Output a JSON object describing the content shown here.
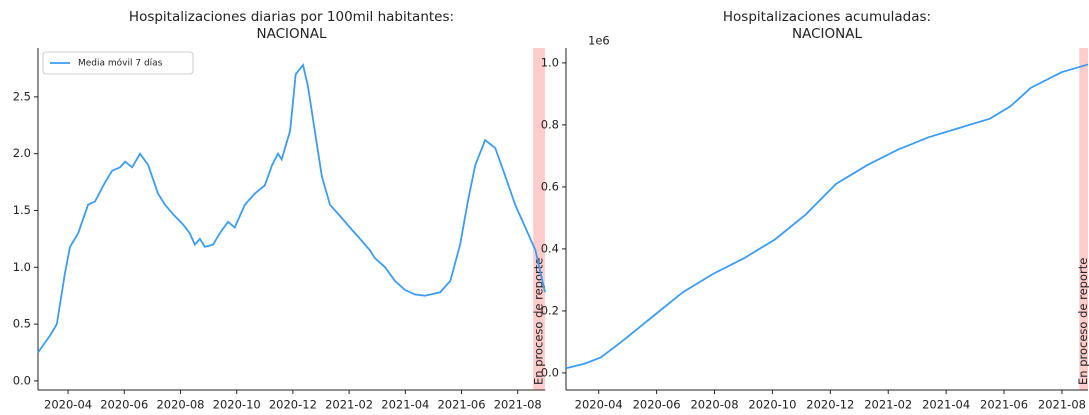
{
  "chart_data": [
    {
      "type": "line",
      "title": [
        "Hospitalizaciones diarias por 100mil habitantes:",
        "NACIONAL"
      ],
      "x": [
        1.93,
        2.36,
        2.6,
        2.89,
        3.07,
        3.36,
        3.71,
        3.96,
        4.32,
        4.57,
        4.85,
        5.03,
        5.28,
        5.56,
        5.85,
        6.2,
        6.45,
        6.8,
        7.08,
        7.33,
        7.51,
        7.69,
        7.87,
        8.16,
        8.4,
        8.69,
        8.93,
        9.29,
        9.65,
        10.0,
        10.26,
        10.47,
        10.6,
        10.9,
        11.1,
        11.36,
        11.53,
        11.78,
        12.03,
        12.32,
        12.68,
        13.03,
        13.39,
        13.74,
        13.92,
        14.28,
        14.63,
        14.99,
        15.35,
        15.7,
        16.24,
        16.6,
        16.95,
        17.24,
        17.49,
        17.84,
        18.2,
        18.56,
        18.91,
        19.27,
        19.63,
        19.97
      ],
      "series": [
        {
          "name": "Media móvil 7 días",
          "color": "#3d9cf0",
          "values": [
            0.25,
            0.4,
            0.5,
            0.95,
            1.18,
            1.3,
            1.55,
            1.58,
            1.75,
            1.85,
            1.88,
            1.93,
            1.88,
            2.0,
            1.9,
            1.65,
            1.55,
            1.45,
            1.38,
            1.3,
            1.2,
            1.25,
            1.18,
            1.2,
            1.3,
            1.4,
            1.35,
            1.55,
            1.65,
            1.72,
            1.9,
            2.0,
            1.95,
            2.2,
            2.7,
            2.78,
            2.6,
            2.2,
            1.8,
            1.55,
            1.45,
            1.35,
            1.25,
            1.15,
            1.08,
            1.0,
            0.88,
            0.8,
            0.76,
            0.75,
            0.78,
            0.88,
            1.2,
            1.6,
            1.9,
            2.12,
            2.05,
            1.8,
            1.55,
            1.35,
            1.15,
            0.78
          ]
        }
      ],
      "xlim": [
        1.93,
        19.97
      ],
      "xticks": [
        {
          "value": 3,
          "label": "2020-04"
        },
        {
          "value": 5,
          "label": "2020-06"
        },
        {
          "value": 7,
          "label": "2020-08"
        },
        {
          "value": 9,
          "label": "2020-10"
        },
        {
          "value": 11,
          "label": "2020-12"
        },
        {
          "value": 13,
          "label": "2021-02"
        },
        {
          "value": 15,
          "label": "2021-04"
        },
        {
          "value": 17,
          "label": "2021-06"
        },
        {
          "value": 19,
          "label": "2021-08"
        }
      ],
      "ylim": [
        -0.08,
        2.93
      ],
      "yticks": [
        {
          "value": 0,
          "label": "0.0"
        },
        0.5,
        {
          "value": 1,
          "label": "1.0"
        },
        1.5,
        {
          "value": 2,
          "label": "2.0"
        },
        2.5
      ],
      "span": {
        "range": [
          19.55,
          19.97
        ],
        "color": "#ffcccc",
        "label": "En proceso de reporte"
      },
      "legend": "upper left"
    },
    {
      "type": "line",
      "title": [
        "Hospitalizaciones acumuladas:",
        "NACIONAL"
      ],
      "x": [
        1.87,
        2.52,
        3.07,
        3.78,
        4.84,
        5.9,
        6.96,
        8.02,
        9.08,
        10.14,
        11.2,
        12.27,
        13.33,
        14.39,
        15.45,
        16.51,
        17.22,
        17.93,
        18.99,
        19.9
      ],
      "series": [
        {
          "color": "#3d9cf0",
          "values": [
            0.015,
            0.03,
            0.05,
            0.1,
            0.18,
            0.26,
            0.32,
            0.37,
            0.43,
            0.51,
            0.61,
            0.67,
            0.72,
            0.76,
            0.79,
            0.82,
            0.86,
            0.92,
            0.97,
            0.995
          ]
        }
      ],
      "xlim": [
        1.87,
        19.9
      ],
      "xticks": [
        {
          "value": 3,
          "label": "2020-04"
        },
        {
          "value": 5,
          "label": "2020-06"
        },
        {
          "value": 7,
          "label": "2020-08"
        },
        {
          "value": 9,
          "label": "2020-10"
        },
        {
          "value": 11,
          "label": "2020-12"
        },
        {
          "value": 13,
          "label": "2021-02"
        },
        {
          "value": 15,
          "label": "2021-04"
        },
        {
          "value": 17,
          "label": "2021-06"
        },
        {
          "value": 19,
          "label": "2021-08"
        }
      ],
      "ylim": [
        -0.055,
        1.048
      ],
      "yticks": [
        {
          "value": 0,
          "label": "0.0"
        },
        0.2,
        0.4,
        0.6,
        0.8,
        {
          "value": 1,
          "label": "1.0"
        }
      ],
      "y_offset_label": "1e6",
      "span": {
        "range": [
          19.6,
          19.9
        ],
        "color": "#ffcccc",
        "label": "En proceso de reporte"
      }
    }
  ]
}
